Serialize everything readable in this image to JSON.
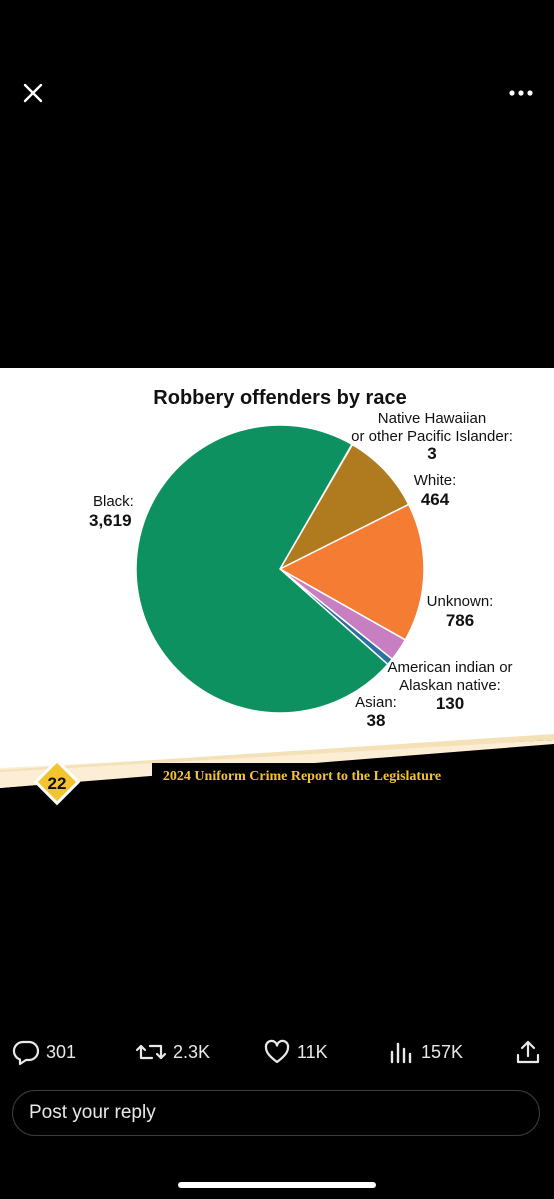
{
  "viewer": {
    "close_icon": "close-icon",
    "more_icon": "more-icon"
  },
  "post_image": {
    "footer_page_number": "22",
    "footer_caption": "2024 Uniform Crime Report to the Legislature"
  },
  "chart_data": {
    "type": "pie",
    "title": "Robbery offenders by race",
    "slices": [
      {
        "label": "Black:",
        "value": 3619,
        "value_text": "3,619",
        "color": "#0e9160"
      },
      {
        "label": "Native Hawaiian or other Pacific Islander:",
        "value": 3,
        "value_text": "3",
        "color": "#2e6e8a"
      },
      {
        "label": "White:",
        "value": 464,
        "value_text": "464",
        "color": "#b07a1e"
      },
      {
        "label": "Unknown:",
        "value": 786,
        "value_text": "786",
        "color": "#f57d33"
      },
      {
        "label": "American indian or Alaskan native:",
        "value": 130,
        "value_text": "130",
        "color": "#c77fc2"
      },
      {
        "label": "Asian:",
        "value": 38,
        "value_text": "38",
        "color": "#2c6fa3"
      }
    ],
    "label_lines": {
      "black": [
        "Black:",
        "3,619"
      ],
      "native_hawaiian": [
        "Native Hawaiian",
        "or other Pacific Islander:",
        "3"
      ],
      "white": [
        "White:",
        "464"
      ],
      "unknown": [
        "Unknown:",
        "786"
      ],
      "american_indian": [
        "American indian or",
        "Alaskan native:",
        "130"
      ],
      "asian": [
        "Asian:",
        "38"
      ]
    }
  },
  "engagement": {
    "replies": "301",
    "reposts": "2.3K",
    "likes": "11K",
    "views": "157K"
  },
  "reply": {
    "placeholder": "Post your reply"
  }
}
